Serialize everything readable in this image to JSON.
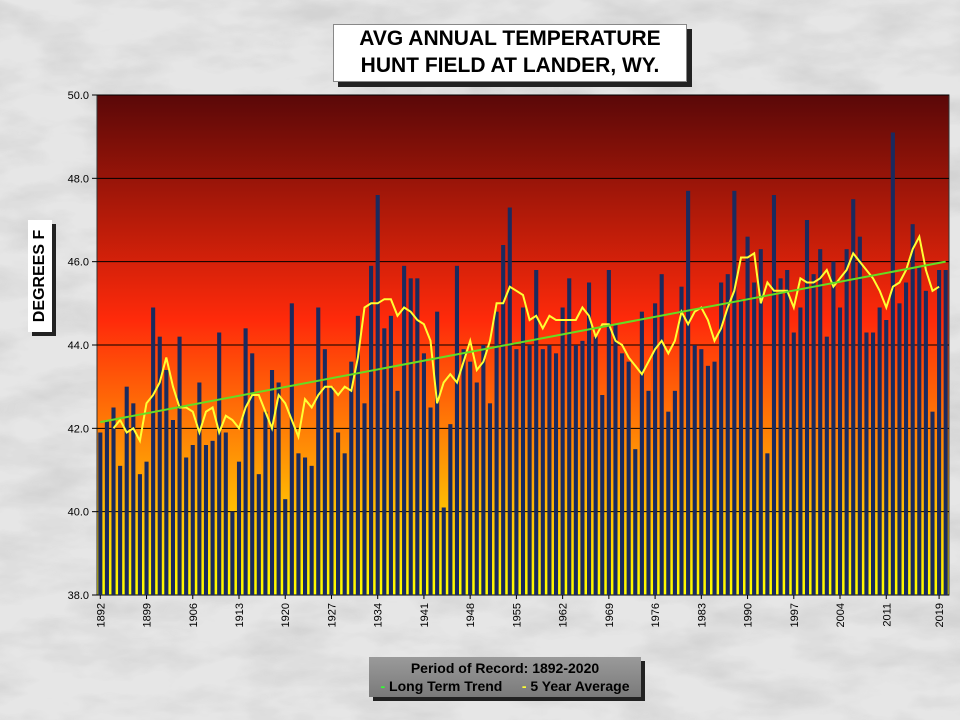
{
  "title_line1": "AVG ANNUAL TEMPERATURE",
  "title_line2": "HUNT FIELD AT LANDER, WY.",
  "legend": {
    "period": "Period of Record: 1892-2020",
    "trend_label": "Long Term Trend",
    "avg_label": "5 Year Average"
  },
  "colors": {
    "bar": "#1b2a5e",
    "trend": "#66dd22",
    "avg": "#ffff33",
    "bg_top": "#5a0808",
    "bg_mid": "#ff2a0a",
    "bg_bottom": "#ffff00"
  },
  "chart_data": {
    "type": "bar",
    "title": "AVG ANNUAL TEMPERATURE HUNT FIELD AT LANDER, WY.",
    "xlabel": "",
    "ylabel": "DEGREES F",
    "ylim": [
      38,
      50
    ],
    "yticks": [
      "38.0",
      "40.0",
      "42.0",
      "44.0",
      "46.0",
      "48.0",
      "50.0"
    ],
    "x_start": 1892,
    "x_end": 2020,
    "xticks": [
      "1892",
      "1899",
      "1906",
      "1913",
      "1920",
      "1927",
      "1934",
      "1941",
      "1948",
      "1955",
      "1962",
      "1969",
      "1976",
      "1983",
      "1990",
      "1997",
      "2004",
      "2011",
      "2019"
    ],
    "grid": true,
    "years": [
      1892,
      1893,
      1894,
      1895,
      1896,
      1897,
      1898,
      1899,
      1900,
      1901,
      1902,
      1903,
      1904,
      1905,
      1906,
      1907,
      1908,
      1909,
      1910,
      1911,
      1912,
      1913,
      1914,
      1915,
      1916,
      1917,
      1918,
      1919,
      1920,
      1921,
      1922,
      1923,
      1924,
      1925,
      1926,
      1927,
      1928,
      1929,
      1930,
      1931,
      1932,
      1933,
      1934,
      1935,
      1936,
      1937,
      1938,
      1939,
      1940,
      1941,
      1942,
      1943,
      1944,
      1945,
      1946,
      1947,
      1948,
      1949,
      1950,
      1951,
      1952,
      1953,
      1954,
      1955,
      1956,
      1957,
      1958,
      1959,
      1960,
      1961,
      1962,
      1963,
      1964,
      1965,
      1966,
      1967,
      1968,
      1969,
      1970,
      1971,
      1972,
      1973,
      1974,
      1975,
      1976,
      1977,
      1978,
      1979,
      1980,
      1981,
      1982,
      1983,
      1984,
      1985,
      1986,
      1987,
      1988,
      1989,
      1990,
      1991,
      1992,
      1993,
      1994,
      1995,
      1996,
      1997,
      1998,
      1999,
      2000,
      2001,
      2002,
      2003,
      2004,
      2005,
      2006,
      2007,
      2008,
      2009,
      2010,
      2011,
      2012,
      2013,
      2014,
      2015,
      2016,
      2017,
      2018,
      2019,
      2020
    ],
    "values": [
      41.9,
      42.2,
      42.5,
      41.1,
      43.0,
      42.6,
      40.9,
      41.2,
      44.9,
      44.2,
      43.4,
      42.2,
      44.2,
      41.3,
      41.6,
      43.1,
      41.6,
      41.7,
      44.3,
      41.9,
      40.0,
      41.2,
      44.4,
      43.8,
      40.9,
      42.4,
      43.4,
      43.1,
      40.3,
      45.0,
      41.4,
      41.3,
      41.1,
      44.9,
      43.9,
      43.0,
      41.9,
      41.4,
      43.6,
      44.7,
      42.6,
      45.9,
      47.6,
      44.4,
      44.7,
      42.9,
      45.9,
      45.6,
      45.6,
      43.8,
      42.5,
      44.8,
      40.1,
      42.1,
      45.9,
      43.9,
      43.6,
      43.1,
      44.0,
      42.6,
      44.8,
      46.4,
      47.3,
      43.9,
      44.9,
      44.0,
      45.8,
      43.9,
      44.0,
      43.8,
      44.9,
      45.6,
      44.0,
      44.1,
      45.5,
      44.2,
      42.8,
      45.8,
      44.5,
      43.8,
      43.6,
      41.5,
      44.8,
      42.9,
      45.0,
      45.7,
      42.4,
      42.9,
      45.4,
      47.7,
      44.0,
      43.9,
      43.5,
      43.6,
      45.5,
      45.7,
      47.7,
      45.1,
      46.6,
      45.5,
      46.3,
      41.4,
      47.6,
      45.6,
      45.8,
      44.3,
      44.9,
      47.0,
      45.7,
      46.3,
      44.2,
      46.0,
      44.9,
      46.3,
      47.5,
      46.6,
      44.3,
      44.3,
      44.9,
      44.6,
      49.1,
      45.0,
      45.5,
      46.9,
      45.9,
      45.3,
      42.4,
      45.8,
      45.8
    ],
    "series": [
      {
        "name": "5 Year Average",
        "values": [
          null,
          null,
          42.0,
          42.2,
          41.9,
          42.0,
          41.7,
          42.6,
          42.8,
          43.1,
          43.7,
          43.0,
          42.5,
          42.5,
          42.4,
          41.9,
          42.4,
          42.5,
          41.9,
          42.3,
          42.2,
          42.0,
          42.5,
          42.8,
          42.8,
          42.4,
          42.0,
          42.8,
          42.6,
          42.2,
          41.8,
          42.7,
          42.5,
          42.8,
          43.0,
          43.0,
          42.8,
          43.0,
          42.9,
          43.7,
          44.9,
          45.0,
          45.0,
          45.1,
          45.1,
          44.7,
          44.9,
          44.8,
          44.6,
          44.5,
          44.1,
          42.6,
          43.1,
          43.3,
          43.1,
          43.6,
          44.1,
          43.4,
          43.6,
          44.1,
          45.0,
          45.0,
          45.4,
          45.3,
          45.2,
          44.6,
          44.7,
          44.4,
          44.7,
          44.6,
          44.6,
          44.6,
          44.6,
          44.9,
          44.7,
          44.2,
          44.5,
          44.5,
          44.1,
          44.0,
          43.7,
          43.5,
          43.3,
          43.6,
          43.9,
          44.1,
          43.8,
          44.1,
          44.8,
          44.5,
          44.8,
          44.9,
          44.6,
          44.1,
          44.4,
          44.9,
          45.3,
          46.1,
          46.1,
          46.2,
          45.0,
          45.5,
          45.3,
          45.3,
          45.3,
          44.9,
          45.6,
          45.5,
          45.5,
          45.6,
          45.8,
          45.4,
          45.6,
          45.8,
          46.2,
          46.0,
          45.8,
          45.6,
          45.3,
          44.9,
          45.4,
          45.5,
          45.8,
          46.3,
          46.6,
          45.8,
          45.3,
          45.4,
          null
        ]
      },
      {
        "name": "Long Term Trend",
        "from": [
          1892,
          42.15
        ],
        "to": [
          2020,
          46.0
        ]
      }
    ]
  }
}
